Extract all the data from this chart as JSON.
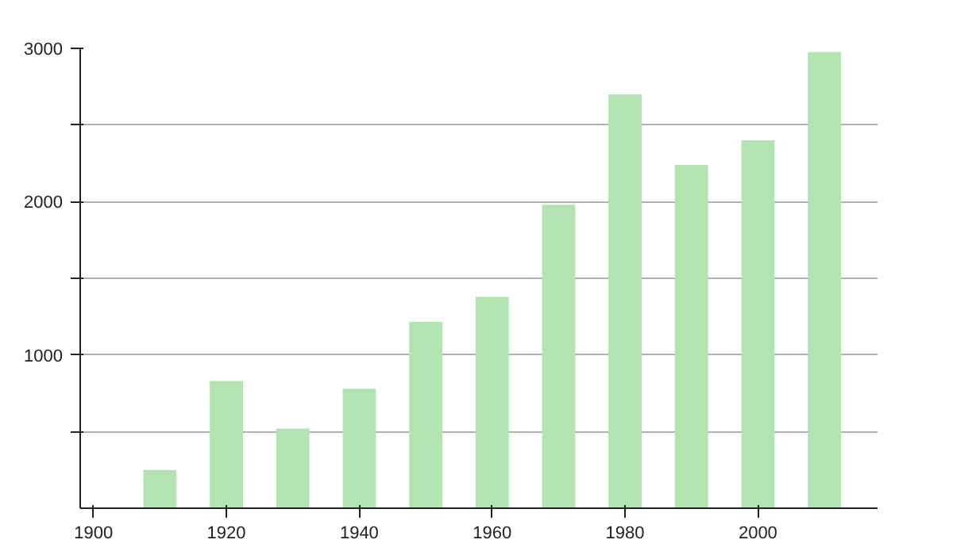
{
  "chart_data": {
    "type": "bar",
    "x": [
      1910,
      1920,
      1930,
      1940,
      1950,
      1960,
      1970,
      1980,
      1990,
      2000,
      2010
    ],
    "values": [
      250,
      830,
      520,
      780,
      1215,
      1380,
      1980,
      2700,
      2240,
      2400,
      2975
    ],
    "color": "#b3e3b0",
    "xlim": [
      1898,
      2018
    ],
    "xticks": [
      1900,
      1920,
      1940,
      1960,
      1980,
      2000
    ],
    "ylim": [
      0,
      3000
    ],
    "yticks": [
      {
        "value": 500,
        "label": null
      },
      1000,
      {
        "value": 1500,
        "label": null
      },
      2000,
      {
        "value": 2500,
        "label": null
      },
      3000
    ],
    "grid": "y"
  }
}
